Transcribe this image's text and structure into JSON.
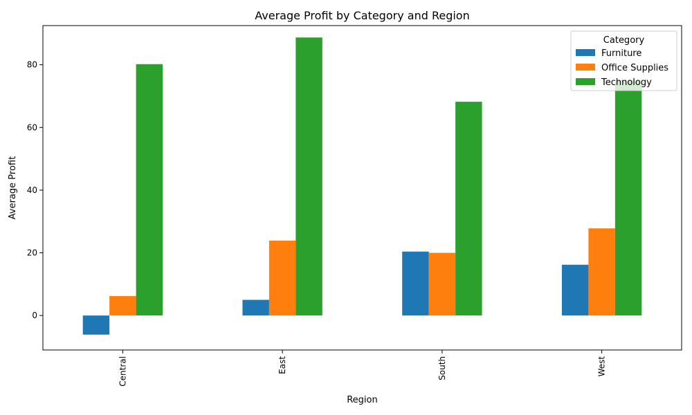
{
  "chart_data": {
    "type": "bar",
    "title": "Average Profit by Category and Region",
    "xlabel": "Region",
    "ylabel": "Average Profit",
    "categories": [
      "Central",
      "East",
      "South",
      "West"
    ],
    "ylim": [
      -11,
      92.5
    ],
    "yticks": [
      0,
      20,
      40,
      60,
      80
    ],
    "grid": false,
    "legend": {
      "title": "Category",
      "placement": "top-right"
    },
    "series": [
      {
        "name": "Furniture",
        "color": "#1f77b4",
        "values": [
          -6.1,
          5.0,
          20.4,
          16.2
        ]
      },
      {
        "name": "Office Supplies",
        "color": "#ff7f0e",
        "values": [
          6.2,
          23.9,
          20.0,
          27.8
        ]
      },
      {
        "name": "Technology",
        "color": "#2ca02c",
        "values": [
          80.2,
          88.7,
          68.2,
          75.0
        ]
      }
    ]
  }
}
